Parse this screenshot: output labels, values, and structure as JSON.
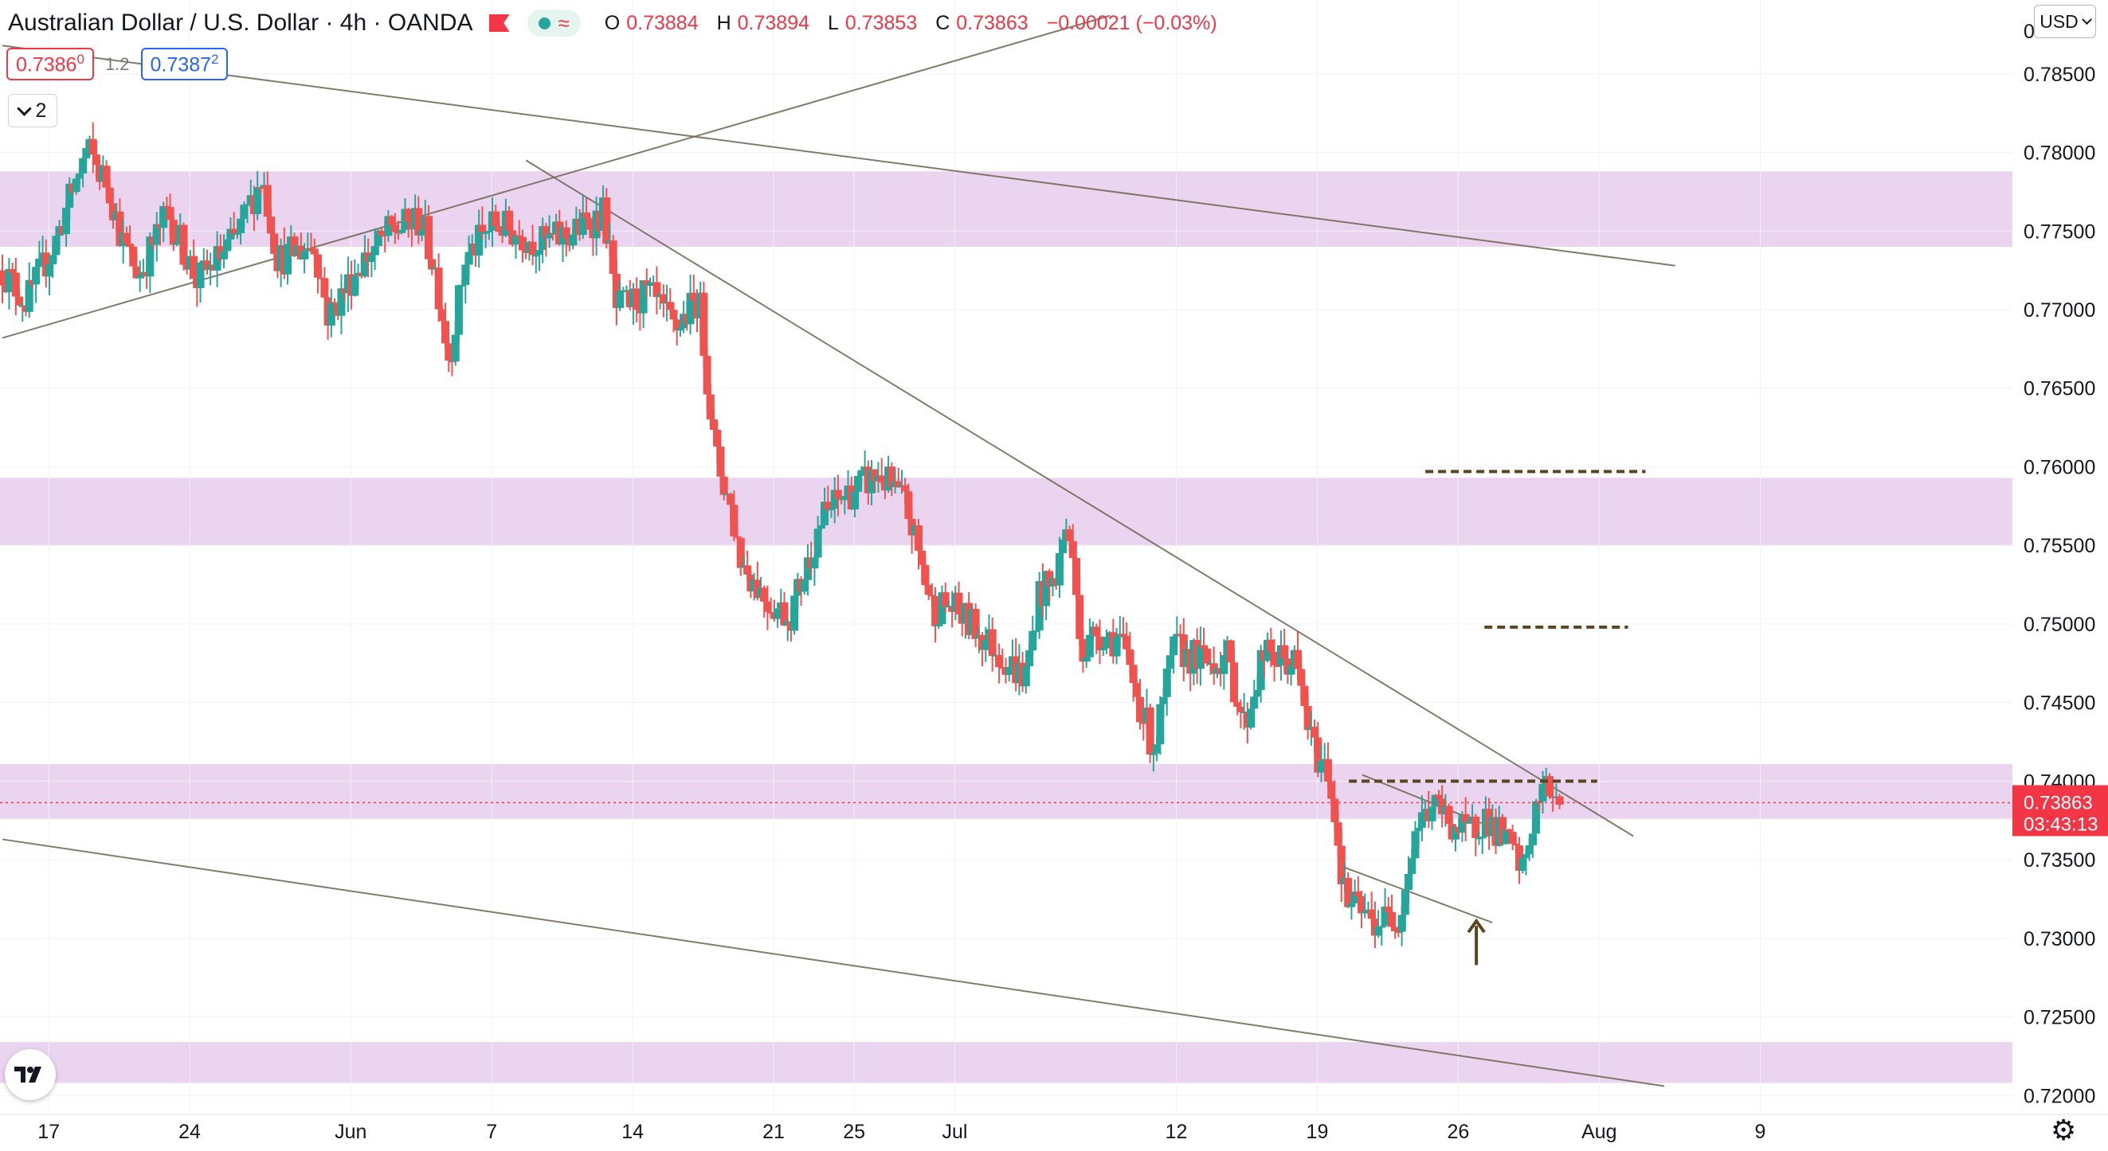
{
  "header": {
    "symbol_title": "Australian Dollar / U.S. Dollar · 4h · OANDA",
    "ohlc": [
      {
        "key": "O",
        "value": "0.73884"
      },
      {
        "key": "H",
        "value": "0.73894"
      },
      {
        "key": "L",
        "value": "0.73853"
      },
      {
        "key": "C",
        "value": "0.73863"
      }
    ],
    "change": "−0.00021 (−0.03%)",
    "status_icon": "flag-icon",
    "pill_icons": [
      "market-status-dot-icon",
      "wave-icon"
    ]
  },
  "trade": {
    "sell_main": "0.7386",
    "sell_small": "0",
    "spread": "1.2",
    "buy_main": "0.7387",
    "buy_small": "2"
  },
  "indicators_toggle": {
    "count": "2",
    "icon": "chevron-down-icon"
  },
  "currency_selector": {
    "label": "USD",
    "icon": "chevron-down-icon"
  },
  "last_price": {
    "value": "0.73863",
    "countdown": "03:43:13"
  },
  "colors": {
    "up": "#26a69a",
    "down": "#ef5350",
    "zone": "#e4c5ea",
    "trendline": "#6d6450",
    "level": "#5a4520",
    "price_line": "#f23645",
    "tag": "#f23645"
  },
  "chart_data": {
    "type": "candlestick",
    "timeframe": "4h",
    "y_axis": {
      "side": "right",
      "ylim": [
        0.7188,
        0.7897
      ],
      "ticks": [
        "0.72000",
        "0.72500",
        "0.73000",
        "0.73500",
        "0.74000",
        "0.74500",
        "0.75000",
        "0.75500",
        "0.76000",
        "0.76500",
        "0.77000",
        "0.77500",
        "0.78000",
        "0.78500"
      ],
      "top_partial_label": "0"
    },
    "x_axis": {
      "ticks": [
        {
          "label": "17",
          "t": 2.3
        },
        {
          "label": "24",
          "t": 9.3
        },
        {
          "label": "Jun",
          "t": 17.3
        },
        {
          "label": "7",
          "t": 24.3
        },
        {
          "label": "14",
          "t": 31.3
        },
        {
          "label": "21",
          "t": 38.3
        },
        {
          "label": "25",
          "t": 42.3
        },
        {
          "label": "Jul",
          "t": 47.3
        },
        {
          "label": "12",
          "t": 58.3
        },
        {
          "label": "19",
          "t": 65.3
        },
        {
          "label": "26",
          "t": 72.3
        },
        {
          "label": "Aug",
          "t": 79.3
        },
        {
          "label": "9",
          "t": 87.3
        }
      ]
    },
    "path_anchors": [
      [
        0,
        0.7725
      ],
      [
        1.2,
        0.7705
      ],
      [
        2.6,
        0.7742
      ],
      [
        4.2,
        0.7802
      ],
      [
        5.3,
        0.7778
      ],
      [
        6,
        0.7742
      ],
      [
        6.8,
        0.7722
      ],
      [
        8.2,
        0.7762
      ],
      [
        9.7,
        0.7718
      ],
      [
        11.6,
        0.7745
      ],
      [
        12.9,
        0.7785
      ],
      [
        13.7,
        0.7732
      ],
      [
        15.5,
        0.7742
      ],
      [
        16.2,
        0.7695
      ],
      [
        17.7,
        0.7728
      ],
      [
        19.3,
        0.775
      ],
      [
        20.8,
        0.7757
      ],
      [
        21.5,
        0.7725
      ],
      [
        22.2,
        0.7668
      ],
      [
        23.0,
        0.7732
      ],
      [
        24.4,
        0.7755
      ],
      [
        26.8,
        0.7742
      ],
      [
        28.2,
        0.7748
      ],
      [
        29.9,
        0.7762
      ],
      [
        30.5,
        0.77
      ],
      [
        31.3,
        0.7705
      ],
      [
        32.1,
        0.771
      ],
      [
        33.4,
        0.7687
      ],
      [
        34.6,
        0.7708
      ],
      [
        35.4,
        0.7608
      ],
      [
        36.1,
        0.7578
      ],
      [
        36.7,
        0.754
      ],
      [
        38.0,
        0.7515
      ],
      [
        39.1,
        0.7505
      ],
      [
        40.0,
        0.7538
      ],
      [
        40.6,
        0.7565
      ],
      [
        41.8,
        0.7582
      ],
      [
        43.6,
        0.7595
      ],
      [
        44.9,
        0.7575
      ],
      [
        46.2,
        0.751
      ],
      [
        47.0,
        0.7512
      ],
      [
        48.5,
        0.7495
      ],
      [
        50.8,
        0.7465
      ],
      [
        51.5,
        0.752
      ],
      [
        52.2,
        0.7525
      ],
      [
        52.9,
        0.7565
      ],
      [
        53.7,
        0.748
      ],
      [
        54.3,
        0.7495
      ],
      [
        55.5,
        0.749
      ],
      [
        57.2,
        0.742
      ],
      [
        58.2,
        0.7485
      ],
      [
        59.8,
        0.7475
      ],
      [
        60.8,
        0.748
      ],
      [
        61.7,
        0.7435
      ],
      [
        62.6,
        0.748
      ],
      [
        64.2,
        0.7475
      ],
      [
        65.1,
        0.742
      ],
      [
        65.9,
        0.7405
      ],
      [
        66.7,
        0.7325
      ],
      [
        68.1,
        0.731
      ],
      [
        69.4,
        0.7315
      ],
      [
        70.2,
        0.737
      ],
      [
        71.0,
        0.7385
      ],
      [
        72.7,
        0.7365
      ],
      [
        73.6,
        0.7378
      ],
      [
        75.0,
        0.7355
      ],
      [
        75.5,
        0.7342
      ],
      [
        76.2,
        0.7385
      ],
      [
        76.6,
        0.7395
      ],
      [
        77.2,
        0.7394
      ],
      [
        77.5,
        0.7386
      ]
    ],
    "overlays": {
      "zones": [
        {
          "from": 0.774,
          "to": 0.7788
        },
        {
          "from": 0.755,
          "to": 0.7593
        },
        {
          "from": 0.7376,
          "to": 0.7411
        },
        {
          "from": 0.7208,
          "to": 0.7234
        }
      ],
      "trendlines": [
        {
          "t1": 0,
          "p1": 0.7682,
          "t2": 82.5,
          "p2": 0.7887
        },
        {
          "t1": 0,
          "p1": 0.7868,
          "t2": 124.6,
          "p2": 0.7728
        },
        {
          "t1": 0,
          "p1": 0.7363,
          "t2": 123.8,
          "p2": 0.7206
        },
        {
          "t1": 39.0,
          "p1": 0.7795,
          "t2": 121.5,
          "p2": 0.7365
        },
        {
          "t1": 101.3,
          "p1": 0.7404,
          "t2": 112.6,
          "p2": 0.7365
        },
        {
          "t1": 100.0,
          "p1": 0.7345,
          "t2": 111.0,
          "p2": 0.731
        }
      ],
      "dashed_levels": [
        {
          "price": 0.7597,
          "t1": 106.0,
          "t2": 122.4
        },
        {
          "price": 0.7498,
          "t1": 110.4,
          "t2": 121.1
        },
        {
          "price": 0.74,
          "t1": 100.3,
          "t2": 118.8
        }
      ],
      "arrow": {
        "t": 109.8,
        "price_tip": 0.7311,
        "price_tail": 0.7283
      },
      "last_price_line": 0.73863
    }
  }
}
